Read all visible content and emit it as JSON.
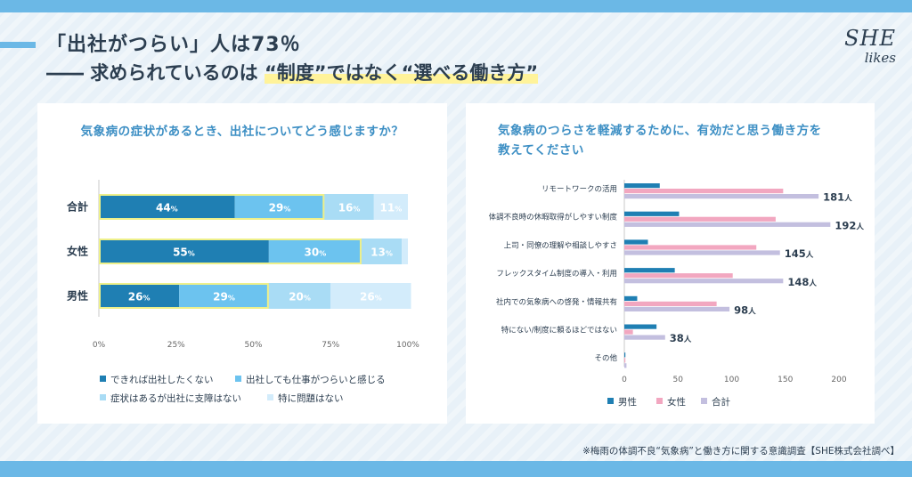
{
  "header": {
    "headline": "「出社がつらい」人は73％",
    "subline_prefix": "―― 求められているのは ",
    "subline_highlight": "“制度”ではなく“選べる働き方”",
    "logo_line1": "SHE",
    "logo_line2": "likes"
  },
  "footnote": "※梅雨の体調不良“気象病”と働き方に関する意識調査【SHE株式会社調べ】",
  "colors": {
    "dark_blue": "#1f7fb3",
    "mid_blue": "#6cc3ef",
    "light_blue": "#a9dcf5",
    "pale_blue": "#d3ecfb",
    "pink": "#f2a7c0",
    "lavender": "#c3bfdf",
    "highlight_border": "#eef08a"
  },
  "chart_data": [
    {
      "type": "bar",
      "orientation": "horizontal-stacked-percent",
      "title": "気象病の症状があるとき、出社についてどう感じますか？",
      "categories": [
        "合計",
        "女性",
        "男性"
      ],
      "series": [
        {
          "name": "できれば出社したくない",
          "values": [
            44,
            55,
            26
          ],
          "labels": [
            "44%",
            "55%",
            "26%"
          ]
        },
        {
          "name": "出社しても仕事がつらいと感じる",
          "values": [
            29,
            30,
            29
          ],
          "labels": [
            "29%",
            "30%",
            "29%"
          ]
        },
        {
          "name": "症状はあるが出社に支障はない",
          "values": [
            16,
            13,
            20
          ],
          "labels": [
            "16%",
            "13%",
            "20%"
          ]
        },
        {
          "name": "特に問題はない",
          "values": [
            11,
            2,
            26
          ],
          "labels": [
            "11%",
            "",
            "26%"
          ]
        }
      ],
      "highlighted_series_count": 2,
      "xlim": [
        0,
        100
      ],
      "xticks": [
        "0%",
        "25%",
        "50%",
        "75%",
        "100%"
      ],
      "legend": [
        "できれば出社したくない",
        "出社しても仕事がつらいと感じる",
        "症状はあるが出社に支障はない",
        "特に問題はない"
      ]
    },
    {
      "type": "bar",
      "orientation": "horizontal-grouped",
      "title_line1": "気象病のつらさを軽減するために、有効だと思う働き方を",
      "title_line2": "教えてください",
      "categories": [
        "リモートワークの活用",
        "体調不良時の休暇取得がしやすい制度",
        "上司・同僚の理解や相談しやすさ",
        "フレックスタイム制度の導入・利用",
        "社内での気象病への啓発・情報共有",
        "特にない/制度に頼るほどではない",
        "その他"
      ],
      "series": [
        {
          "name": "男性",
          "values": [
            33,
            51,
            22,
            47,
            12,
            30,
            1
          ]
        },
        {
          "name": "女性",
          "values": [
            148,
            141,
            123,
            101,
            86,
            8,
            1
          ]
        },
        {
          "name": "合計",
          "values": [
            181,
            192,
            145,
            148,
            98,
            38,
            2
          ],
          "labels": [
            "181",
            "192",
            "145",
            "148",
            "98",
            "38",
            ""
          ]
        }
      ],
      "value_unit": "人",
      "xlim": [
        0,
        200
      ],
      "xticks": [
        "0",
        "50",
        "100",
        "150",
        "200"
      ],
      "legend": [
        "男性",
        "女性",
        "合計"
      ]
    }
  ]
}
